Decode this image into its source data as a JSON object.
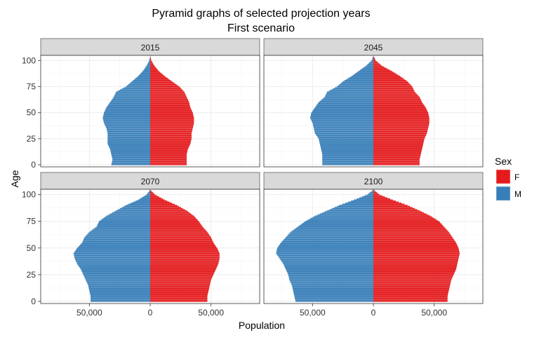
{
  "chart_data": {
    "type": "bar",
    "orientation": "horizontal-population-pyramid",
    "title": "Pyramid graphs of selected projection years",
    "subtitle": "First scenario",
    "xlabel": "Population",
    "ylabel": "Age",
    "xlim": [
      -90000,
      90000
    ],
    "ylim": [
      -2,
      105
    ],
    "x_tick_values": [
      -50000,
      0,
      50000
    ],
    "x_tick_labels": [
      "50,000",
      "0",
      "50,000"
    ],
    "y_ticks": [
      0,
      25,
      50,
      75,
      100
    ],
    "grid": true,
    "legend": {
      "title": "Sex",
      "position": "right",
      "items": [
        {
          "label": "F",
          "color": "#E41A1C"
        },
        {
          "label": "M",
          "color": "#377EB8"
        }
      ]
    },
    "colors": {
      "F": "#E41A1C",
      "M": "#377EB8",
      "panel_border": "#333333",
      "strip_bg": "#D9D9D9",
      "grid": "#EBEBEB"
    },
    "age_anchors": [
      0,
      5,
      10,
      15,
      20,
      25,
      30,
      35,
      40,
      45,
      50,
      55,
      60,
      65,
      70,
      75,
      80,
      85,
      90,
      95,
      100,
      104
    ],
    "panels": [
      {
        "label": "2015",
        "male_anchors": [
          32000,
          31000,
          32000,
          33000,
          35000,
          35000,
          35000,
          36000,
          38000,
          39000,
          38000,
          36000,
          33000,
          30000,
          28000,
          20000,
          15000,
          10000,
          6000,
          3000,
          800,
          100
        ],
        "female_anchors": [
          30000,
          30000,
          30000,
          31000,
          33000,
          34000,
          34000,
          35000,
          36000,
          36000,
          35000,
          33000,
          32000,
          30000,
          28000,
          24000,
          18000,
          12000,
          7000,
          3500,
          1000,
          150
        ]
      },
      {
        "label": "2045",
        "male_anchors": [
          42000,
          42000,
          42000,
          43000,
          44000,
          45000,
          48000,
          49000,
          50000,
          52000,
          51000,
          48000,
          45000,
          40000,
          38000,
          30000,
          25000,
          18000,
          12000,
          6000,
          1500,
          200
        ],
        "female_anchors": [
          38000,
          38000,
          39000,
          40000,
          41000,
          42000,
          44000,
          45000,
          46000,
          46000,
          45000,
          43000,
          40000,
          38000,
          34000,
          32000,
          28000,
          22000,
          15000,
          7000,
          2000,
          300
        ]
      },
      {
        "label": "2070",
        "male_anchors": [
          49000,
          49000,
          50000,
          51000,
          53000,
          55000,
          57000,
          60000,
          62000,
          63000,
          60000,
          56000,
          54000,
          50000,
          44000,
          42000,
          36000,
          28000,
          20000,
          10000,
          3000,
          400
        ],
        "female_anchors": [
          47000,
          47000,
          48000,
          49000,
          50000,
          52000,
          54000,
          56000,
          57000,
          57000,
          55000,
          52000,
          50000,
          47000,
          43000,
          40000,
          36000,
          30000,
          22000,
          12000,
          4000,
          500
        ]
      },
      {
        "label": "2100",
        "male_anchors": [
          64000,
          65000,
          66000,
          67000,
          69000,
          70000,
          72000,
          74000,
          77000,
          80000,
          79000,
          76000,
          72000,
          68000,
          62000,
          56000,
          48000,
          38000,
          28000,
          16000,
          5000,
          700
        ],
        "female_anchors": [
          61000,
          61000,
          62000,
          63000,
          64000,
          66000,
          68000,
          69000,
          70000,
          71000,
          70000,
          68000,
          65000,
          62000,
          58000,
          54000,
          47000,
          38000,
          28000,
          16000,
          5000,
          800
        ]
      }
    ]
  }
}
